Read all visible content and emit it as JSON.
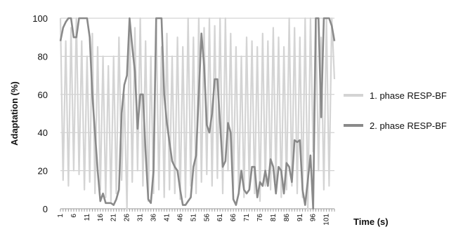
{
  "chart_data": {
    "type": "line",
    "xlabel": "Time (s)",
    "ylabel": "Adaptation (%)",
    "ylim": [
      0,
      100
    ],
    "yticks": [
      0,
      20,
      40,
      60,
      80,
      100
    ],
    "grid": "horizontal",
    "legend_position": "right",
    "xticks": [
      "1",
      "6",
      "11",
      "16",
      "21",
      "26",
      "31",
      "36",
      "41",
      "46",
      "51",
      "56",
      "61",
      "66",
      "71",
      "76",
      "81",
      "86",
      "91",
      "96",
      "101"
    ],
    "x": [
      1,
      2,
      3,
      4,
      5,
      6,
      7,
      8,
      9,
      10,
      11,
      12,
      13,
      14,
      15,
      16,
      17,
      18,
      19,
      20,
      21,
      22,
      23,
      24,
      25,
      26,
      27,
      28,
      29,
      30,
      31,
      32,
      33,
      34,
      35,
      36,
      37,
      38,
      39,
      40,
      41,
      42,
      43,
      44,
      45,
      46,
      47,
      48,
      49,
      50,
      51,
      52,
      53,
      54,
      55,
      56,
      57,
      58,
      59,
      60,
      61,
      62,
      63,
      64,
      65,
      66,
      67,
      68,
      69,
      70,
      71,
      72,
      73,
      74,
      75,
      76,
      77,
      78,
      79,
      80,
      81,
      82,
      83,
      84,
      85,
      86,
      87,
      88,
      89,
      90,
      91,
      92,
      93,
      94,
      95,
      96,
      97,
      98,
      99,
      100,
      101,
      102,
      103,
      104
    ],
    "series": [
      {
        "name": "1. phase RESP-BF",
        "color": "#d4d4d4",
        "values": [
          100,
          15,
          88,
          12,
          95,
          20,
          100,
          18,
          88,
          10,
          80,
          14,
          92,
          8,
          85,
          10,
          80,
          6,
          75,
          4,
          80,
          8,
          90,
          15,
          60,
          0,
          100,
          14,
          95,
          20,
          100,
          12,
          88,
          4,
          80,
          8,
          100,
          10,
          85,
          6,
          92,
          10,
          80,
          8,
          90,
          5,
          85,
          6,
          100,
          12,
          90,
          8,
          100,
          14,
          95,
          18,
          100,
          12,
          96,
          16,
          100,
          8,
          100,
          20,
          92,
          10,
          85,
          8,
          80,
          6,
          90,
          10,
          88,
          8,
          85,
          4,
          92,
          12,
          88,
          10,
          95,
          14,
          90,
          6,
          85,
          10,
          100,
          12,
          95,
          8,
          90,
          6,
          100,
          0,
          100,
          30,
          100,
          20,
          90,
          10,
          100,
          12,
          100,
          68
        ]
      },
      {
        "name": "2. phase RESP-BF",
        "color": "#8a8a8a",
        "values": [
          88,
          95,
          98,
          100,
          100,
          90,
          90,
          100,
          100,
          100,
          100,
          90,
          60,
          40,
          20,
          4,
          8,
          3,
          3,
          3,
          2,
          5,
          10,
          50,
          65,
          70,
          100,
          85,
          72,
          42,
          60,
          60,
          30,
          5,
          3,
          20,
          100,
          100,
          100,
          60,
          45,
          35,
          25,
          22,
          20,
          10,
          2,
          2,
          4,
          6,
          22,
          28,
          60,
          92,
          75,
          44,
          40,
          50,
          68,
          68,
          45,
          22,
          25,
          45,
          40,
          5,
          2,
          8,
          20,
          10,
          8,
          10,
          22,
          22,
          6,
          14,
          12,
          20,
          12,
          26,
          22,
          8,
          22,
          20,
          8,
          24,
          22,
          14,
          36,
          35,
          36,
          10,
          2,
          15,
          28,
          0,
          100,
          100,
          48,
          100,
          100,
          100,
          96,
          88
        ]
      }
    ]
  }
}
